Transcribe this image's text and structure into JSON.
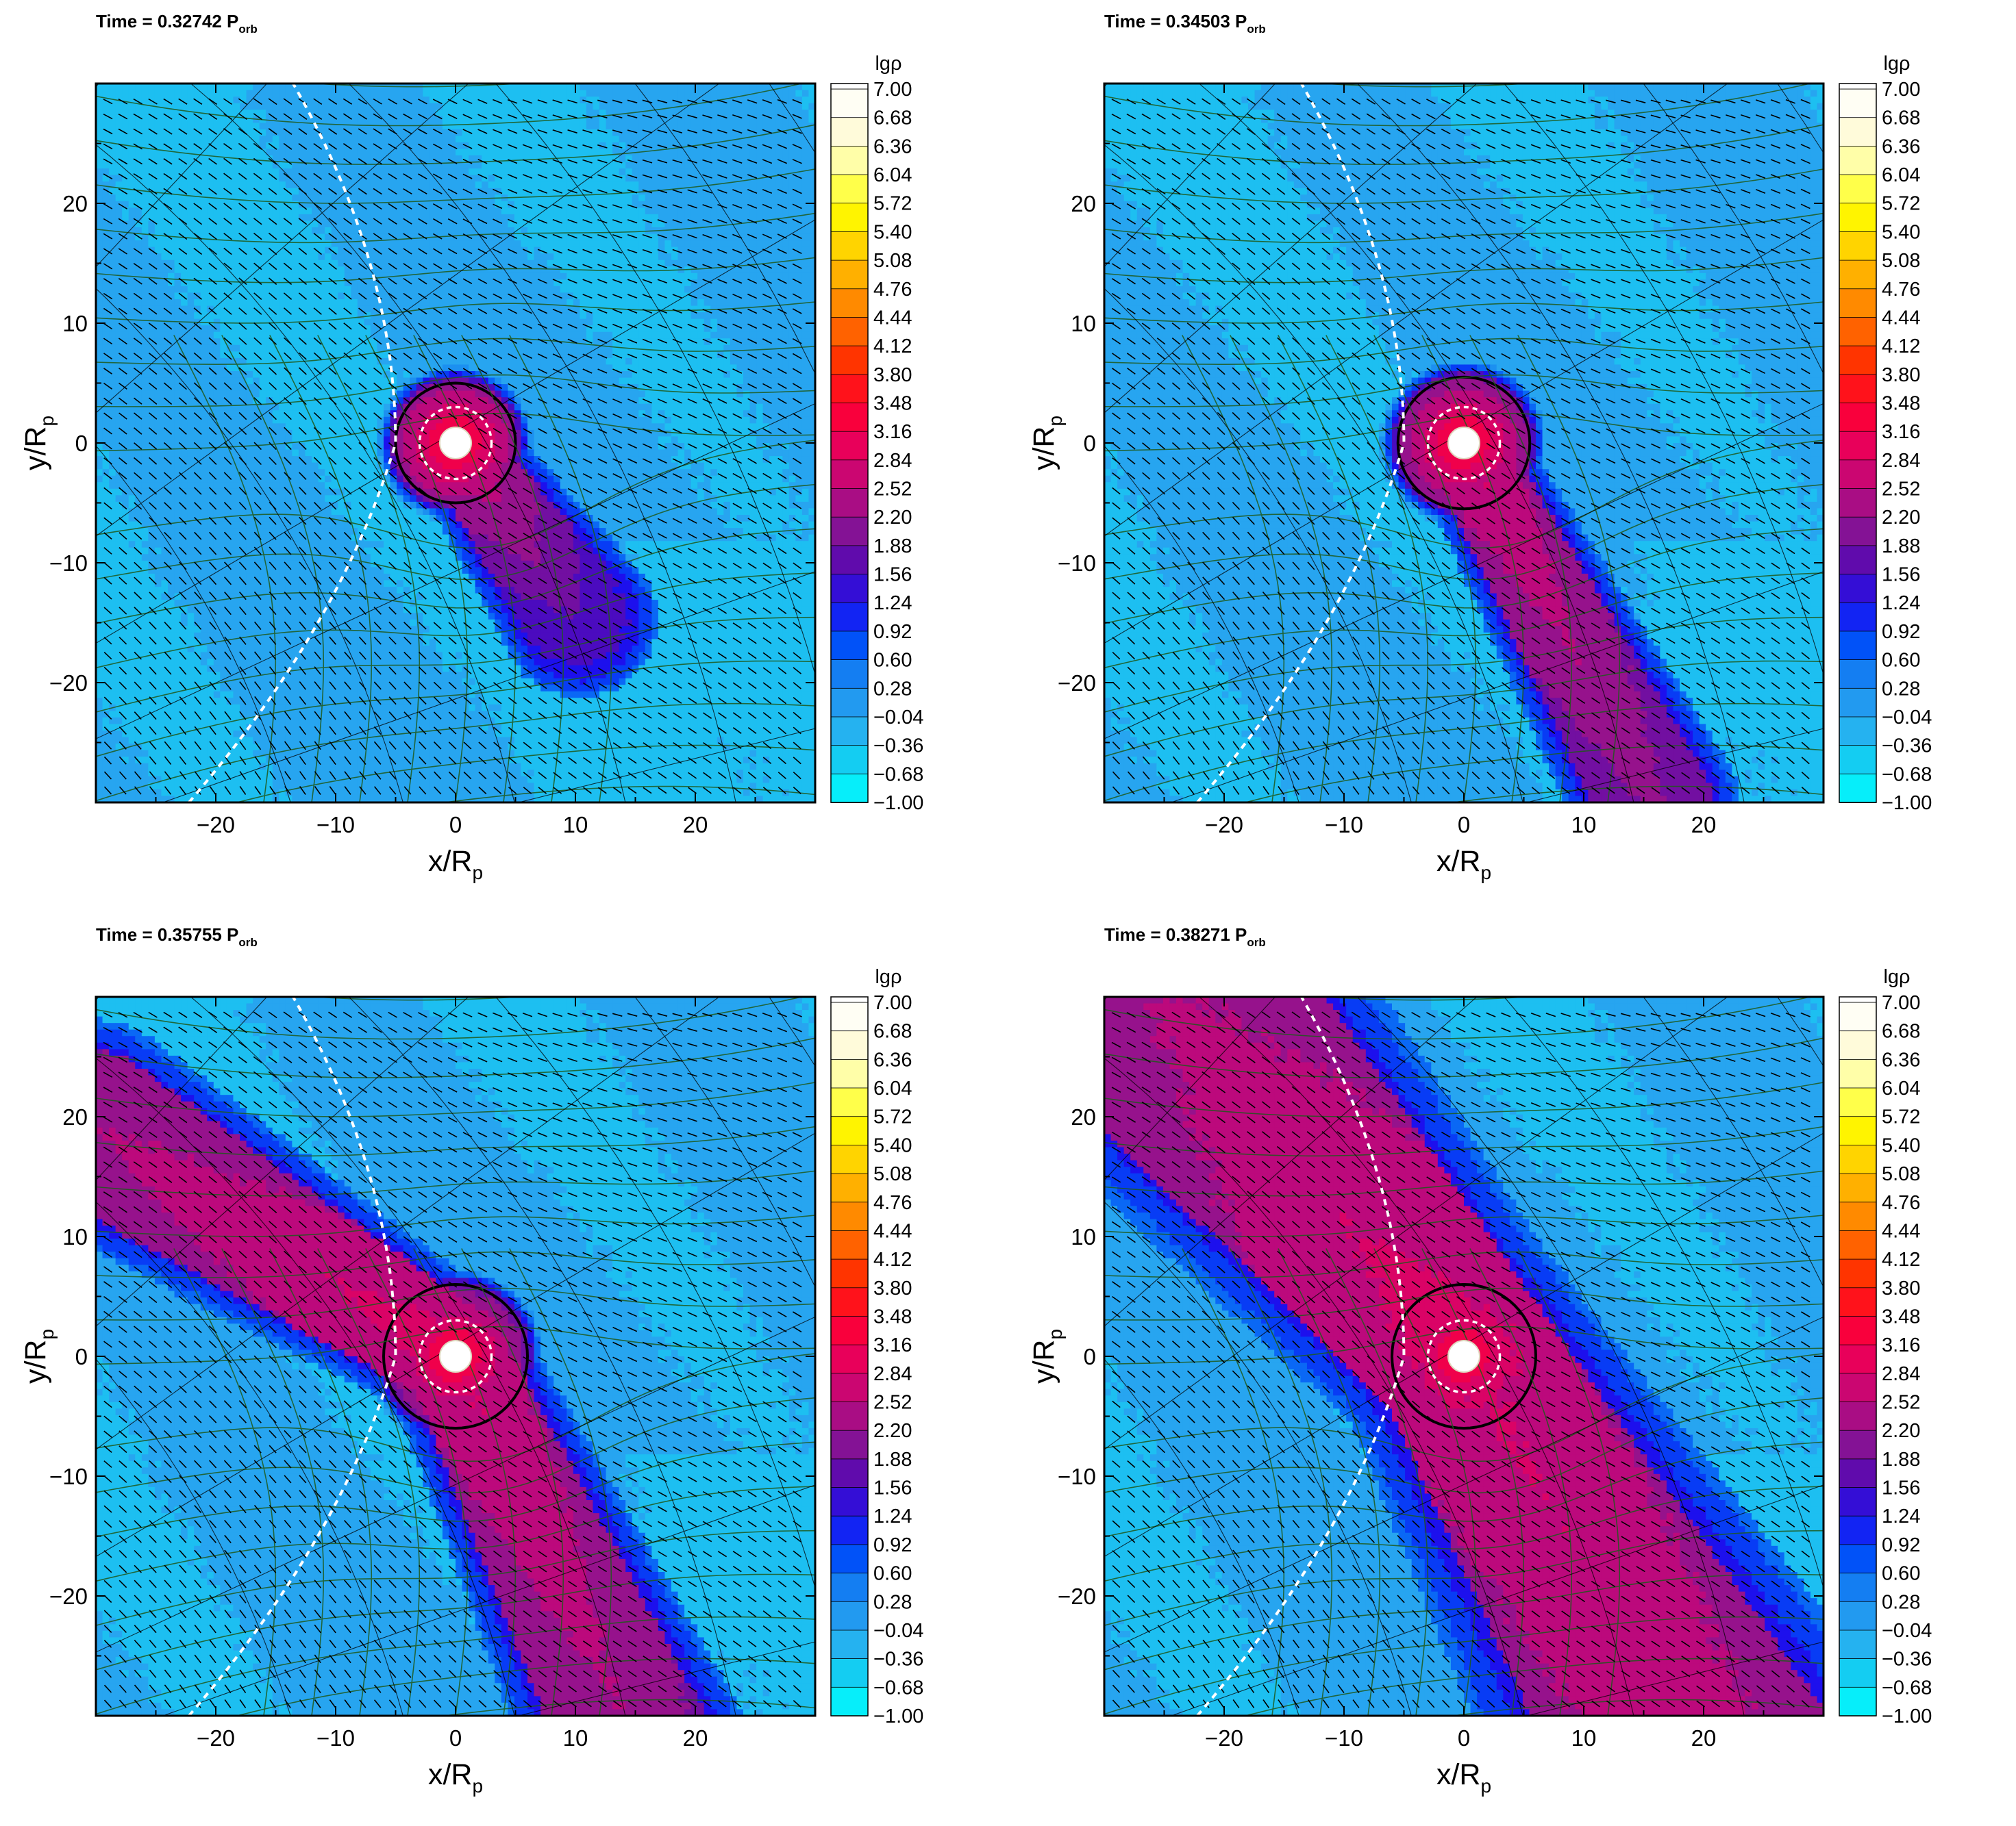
{
  "chart_data": [
    {
      "type": "heatmap",
      "title": {
        "prefix": "Time = 0.32742 P",
        "subscript": "orb"
      },
      "xlabel": {
        "main": "x/R",
        "sub": "p"
      },
      "ylabel": {
        "main": "y/R",
        "sub": "p"
      },
      "xlim": [
        -30,
        30
      ],
      "ylim": [
        -30,
        30
      ],
      "xticks": [
        "-20",
        "-10",
        "0",
        "10",
        "20"
      ],
      "yticks": [
        "-20",
        "-10",
        "0",
        "10",
        "20"
      ],
      "colorbar_label": "lgρ",
      "morph": {
        "ang": -55,
        "lenD": 18,
        "lenU": 0,
        "w": 3.0,
        "rim": 5.0,
        "dense": 0.25
      }
    },
    {
      "type": "heatmap",
      "title": {
        "prefix": "Time = 0.34503 P",
        "subscript": "orb"
      },
      "xlabel": {
        "main": "x/R",
        "sub": "p"
      },
      "ylabel": {
        "main": "y/R",
        "sub": "p"
      },
      "xlim": [
        -30,
        30
      ],
      "ylim": [
        -30,
        30
      ],
      "xticks": [
        "-20",
        "-10",
        "0",
        "10",
        "20"
      ],
      "yticks": [
        "-20",
        "-10",
        "0",
        "10",
        "20"
      ],
      "colorbar_label": "lgρ",
      "morph": {
        "ang": -62,
        "lenD": 34,
        "lenU": 0,
        "w": 3.2,
        "rim": 5.5,
        "dense": 0.6
      }
    },
    {
      "type": "heatmap",
      "title": {
        "prefix": "Time = 0.35755 P",
        "subscript": "orb"
      },
      "xlabel": {
        "main": "x/R",
        "sub": "p"
      },
      "ylabel": {
        "main": "y/R",
        "sub": "p"
      },
      "xlim": [
        -30,
        30
      ],
      "ylim": [
        -30,
        30
      ],
      "xticks": [
        "-20",
        "-10",
        "0",
        "10",
        "20"
      ],
      "yticks": [
        "-20",
        "-10",
        "0",
        "10",
        "20"
      ],
      "colorbar_label": "lgρ",
      "morph": {
        "ang": -65,
        "lenD": 36,
        "lenU": 36,
        "angU": 148,
        "w": 4.2,
        "rim": 6.0,
        "dense": 0.8
      }
    },
    {
      "type": "heatmap",
      "title": {
        "prefix": "Time = 0.38271 P",
        "subscript": "orb"
      },
      "xlabel": {
        "main": "x/R",
        "sub": "p"
      },
      "ylabel": {
        "main": "y/R",
        "sub": "p"
      },
      "xlim": [
        -30,
        30
      ],
      "ylim": [
        -30,
        30
      ],
      "xticks": [
        "-20",
        "-10",
        "0",
        "10",
        "20"
      ],
      "yticks": [
        "-20",
        "-10",
        "0",
        "10",
        "20"
      ],
      "colorbar_label": "lgρ",
      "morph": {
        "ang": -60,
        "lenD": 40,
        "lenU": 42,
        "angU": 130,
        "w": 7.5,
        "rim": 6.0,
        "dense": 1.0
      }
    }
  ],
  "colorbar": {
    "levels": [
      "7.00",
      "6.68",
      "6.36",
      "6.04",
      "5.72",
      "5.40",
      "5.08",
      "4.76",
      "4.44",
      "4.12",
      "3.80",
      "3.48",
      "3.16",
      "2.84",
      "2.52",
      "2.20",
      "1.88",
      "1.56",
      "1.24",
      "0.92",
      "0.60",
      "0.28",
      "−0.04",
      "−0.36",
      "−0.68",
      "−1.00"
    ],
    "range": [
      -1.0,
      7.0
    ],
    "colors": [
      "#ffffff",
      "#fffbe0",
      "#ffff9a",
      "#ffff00",
      "#ffd200",
      "#ffa000",
      "#ff6a00",
      "#ff2a00",
      "#ff0030",
      "#e8005a",
      "#c0087a",
      "#8c1490",
      "#5a0ab0",
      "#1a10f0",
      "#0050f8",
      "#1a8cf0",
      "#2aaaf0",
      "#12d0f2",
      "#00ffff"
    ]
  }
}
